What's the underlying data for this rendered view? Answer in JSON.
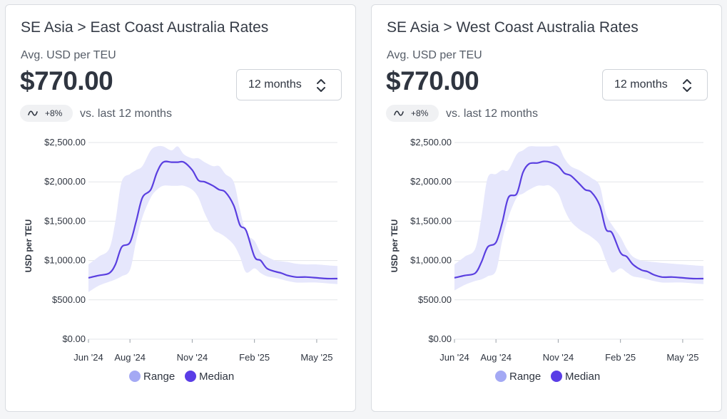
{
  "cards": [
    {
      "title": "SE Asia > East Coast Australia Rates",
      "metric_label": "Avg. USD per TEU",
      "metric_value": "$770.00",
      "period_select": "12 months",
      "change_badge": "+8%",
      "change_text": "vs. last 12 months"
    },
    {
      "title": "SE Asia > West Coast Australia Rates",
      "metric_label": "Avg. USD per TEU",
      "metric_value": "$770.00",
      "period_select": "12 months",
      "change_badge": "+8%",
      "change_text": "vs. last 12 months"
    }
  ],
  "colors": {
    "range_fill": "#e6e7fc",
    "median_line": "#5a3fe0",
    "legend_range": "#a4a9f4",
    "legend_median": "#5a3de6",
    "grid": "#e3e5e9"
  },
  "chart_data": [
    {
      "type": "area",
      "ylabel": "USD per TEU",
      "ylim": [
        0,
        2500
      ],
      "yticks": [
        0,
        500,
        1000,
        1500,
        2000,
        2500
      ],
      "ytick_labels": [
        "$0.00",
        "$500.00",
        "$1,000.00",
        "$1,500.00",
        "$2,000.00",
        "$2,500.00"
      ],
      "xlim": [
        0,
        12
      ],
      "xticks": [
        0,
        2,
        5,
        8,
        11
      ],
      "xtick_labels": [
        "Jun '24",
        "Aug '24",
        "Nov '24",
        "Feb '25",
        "May '25"
      ],
      "grid": true,
      "legend": [
        "Range",
        "Median"
      ],
      "legend_position": "bottom",
      "series": [
        {
          "name": "Median",
          "x": [
            0,
            0.5,
            1,
            1.3,
            1.6,
            2,
            2.3,
            2.6,
            3,
            3.3,
            3.6,
            4,
            4.3,
            4.6,
            5,
            5.3,
            5.6,
            6,
            6.3,
            6.6,
            7,
            7.3,
            7.6,
            8,
            8.3,
            8.6,
            9,
            9.3,
            9.6,
            10,
            10.5,
            11,
            11.5,
            12
          ],
          "values": [
            780,
            810,
            840,
            950,
            1170,
            1230,
            1500,
            1800,
            1900,
            2120,
            2250,
            2250,
            2250,
            2250,
            2150,
            2020,
            2000,
            1950,
            1900,
            1870,
            1700,
            1450,
            1380,
            1050,
            1000,
            900,
            860,
            840,
            810,
            790,
            790,
            780,
            770,
            770
          ]
        },
        {
          "name": "Range",
          "x": [
            0,
            0.5,
            1,
            1.3,
            1.6,
            2,
            2.3,
            2.6,
            3,
            3.3,
            3.6,
            4,
            4.3,
            4.6,
            5,
            5.3,
            5.6,
            6,
            6.3,
            6.6,
            7,
            7.3,
            7.6,
            8,
            8.3,
            8.6,
            9,
            9.3,
            9.6,
            10,
            10.5,
            11,
            11.5,
            12
          ],
          "lower": [
            600,
            680,
            730,
            760,
            800,
            880,
            1250,
            1550,
            1800,
            1900,
            1950,
            1950,
            1950,
            1950,
            1900,
            1800,
            1600,
            1400,
            1350,
            1300,
            1200,
            1050,
            850,
            900,
            840,
            800,
            780,
            760,
            740,
            720,
            720,
            720,
            710,
            700
          ],
          "upper": [
            950,
            1050,
            1150,
            1500,
            2000,
            2100,
            2150,
            2200,
            2400,
            2450,
            2450,
            2400,
            2450,
            2350,
            2300,
            2300,
            2250,
            2200,
            2200,
            2100,
            2000,
            1650,
            1350,
            1250,
            1100,
            1050,
            1000,
            990,
            980,
            960,
            950,
            950,
            940,
            930
          ]
        }
      ]
    },
    {
      "type": "area",
      "ylabel": "USD per TEU",
      "ylim": [
        0,
        2500
      ],
      "yticks": [
        0,
        500,
        1000,
        1500,
        2000,
        2500
      ],
      "ytick_labels": [
        "$0.00",
        "$500.00",
        "$1,000.00",
        "$1,500.00",
        "$2,000.00",
        "$2,500.00"
      ],
      "xlim": [
        0,
        12
      ],
      "xticks": [
        0,
        2,
        5,
        8,
        11
      ],
      "xtick_labels": [
        "Jun '24",
        "Aug '24",
        "Nov '24",
        "Feb '25",
        "May '25"
      ],
      "grid": true,
      "legend": [
        "Range",
        "Median"
      ],
      "legend_position": "bottom",
      "series": [
        {
          "name": "Median",
          "x": [
            0,
            0.5,
            1,
            1.3,
            1.6,
            2,
            2.3,
            2.6,
            3,
            3.3,
            3.6,
            4,
            4.3,
            4.6,
            5,
            5.3,
            5.6,
            6,
            6.3,
            6.6,
            7,
            7.3,
            7.6,
            8,
            8.3,
            8.6,
            9,
            9.3,
            9.6,
            10,
            10.5,
            11,
            11.5,
            12
          ],
          "values": [
            780,
            810,
            840,
            980,
            1170,
            1230,
            1480,
            1800,
            1850,
            2120,
            2230,
            2240,
            2260,
            2250,
            2200,
            2110,
            2080,
            1980,
            1900,
            1870,
            1700,
            1400,
            1350,
            1100,
            1050,
            950,
            880,
            860,
            820,
            790,
            790,
            780,
            770,
            770
          ]
        },
        {
          "name": "Range",
          "x": [
            0,
            0.5,
            1,
            1.3,
            1.6,
            2,
            2.3,
            2.6,
            3,
            3.3,
            3.6,
            4,
            4.3,
            4.6,
            5,
            5.3,
            5.6,
            6,
            6.3,
            6.6,
            7,
            7.3,
            7.6,
            8,
            8.3,
            8.6,
            9,
            9.3,
            9.6,
            10,
            10.5,
            11,
            11.5,
            12
          ],
          "lower": [
            620,
            690,
            740,
            760,
            800,
            870,
            1250,
            1550,
            1800,
            1850,
            1900,
            1950,
            1950,
            1950,
            1850,
            1650,
            1500,
            1400,
            1350,
            1300,
            1200,
            1000,
            850,
            900,
            850,
            800,
            780,
            760,
            740,
            720,
            720,
            720,
            710,
            700
          ],
          "upper": [
            950,
            1050,
            1150,
            1550,
            2050,
            2100,
            2150,
            2150,
            2350,
            2400,
            2450,
            2450,
            2450,
            2450,
            2450,
            2300,
            2200,
            2150,
            2100,
            2050,
            1950,
            1600,
            1450,
            1300,
            1150,
            1050,
            1000,
            990,
            980,
            970,
            960,
            950,
            940,
            930
          ]
        }
      ]
    }
  ]
}
